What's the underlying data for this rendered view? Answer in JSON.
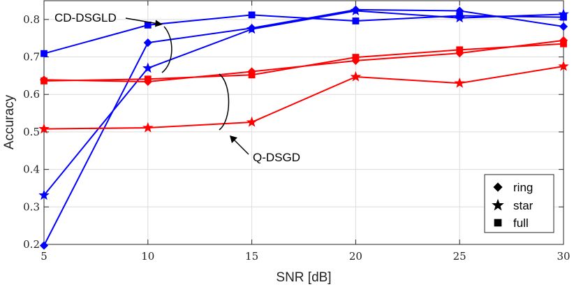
{
  "chart_data": {
    "type": "line",
    "title": "",
    "xlabel": "SNR [dB]",
    "ylabel": "Accuracy",
    "xlim": [
      5,
      30
    ],
    "ylim": [
      0.2,
      0.85
    ],
    "xticks": [
      5,
      10,
      15,
      20,
      25,
      30
    ],
    "yticks": [
      0.2,
      0.3,
      0.4,
      0.5,
      0.6,
      0.7,
      0.8
    ],
    "xtick_labels": [
      "5",
      "10",
      "15",
      "20",
      "25",
      "30"
    ],
    "ytick_labels": [
      "0.2",
      "0.3",
      "0.4",
      "0.5",
      "0.6",
      "0.7",
      "0.8"
    ],
    "grid": true,
    "x": [
      5,
      10,
      15,
      20,
      25,
      30
    ],
    "series": [
      {
        "name": "CD-DSGLD ring",
        "method": "CD-DSGLD",
        "topology": "ring",
        "color": "#0000ff",
        "marker": "diamond",
        "values": [
          0.197,
          0.738,
          0.777,
          0.826,
          0.823,
          0.781
        ]
      },
      {
        "name": "CD-DSGLD star",
        "method": "CD-DSGLD",
        "topology": "star",
        "color": "#0000ff",
        "marker": "star",
        "values": [
          0.331,
          0.67,
          0.774,
          0.823,
          0.804,
          0.814
        ]
      },
      {
        "name": "CD-DSGLD full",
        "method": "CD-DSGLD",
        "topology": "full",
        "color": "#0000ff",
        "marker": "square",
        "values": [
          0.709,
          0.785,
          0.812,
          0.796,
          0.81,
          0.806
        ]
      },
      {
        "name": "Q-DSGD ring",
        "method": "Q-DSGD",
        "topology": "ring",
        "color": "#ff0000",
        "marker": "diamond",
        "values": [
          0.639,
          0.634,
          0.661,
          0.69,
          0.71,
          0.744
        ]
      },
      {
        "name": "Q-DSGD star",
        "method": "Q-DSGD",
        "topology": "star",
        "color": "#ff0000",
        "marker": "star",
        "values": [
          0.508,
          0.511,
          0.526,
          0.647,
          0.63,
          0.675
        ]
      },
      {
        "name": "Q-DSGD full",
        "method": "Q-DSGD",
        "topology": "full",
        "color": "#ff0000",
        "marker": "square",
        "values": [
          0.636,
          0.641,
          0.652,
          0.699,
          0.719,
          0.735
        ]
      }
    ],
    "annotations": [
      {
        "text": "CD-DSGLD",
        "points_to": "blue curves near SNR 10 dB"
      },
      {
        "text": "Q-DSGD",
        "points_to": "red curves near SNR 14 dB"
      }
    ],
    "legend": {
      "position": "bottom-right",
      "entries": [
        {
          "label": "ring",
          "marker": "diamond"
        },
        {
          "label": "star",
          "marker": "star"
        },
        {
          "label": "full",
          "marker": "square"
        }
      ]
    }
  }
}
